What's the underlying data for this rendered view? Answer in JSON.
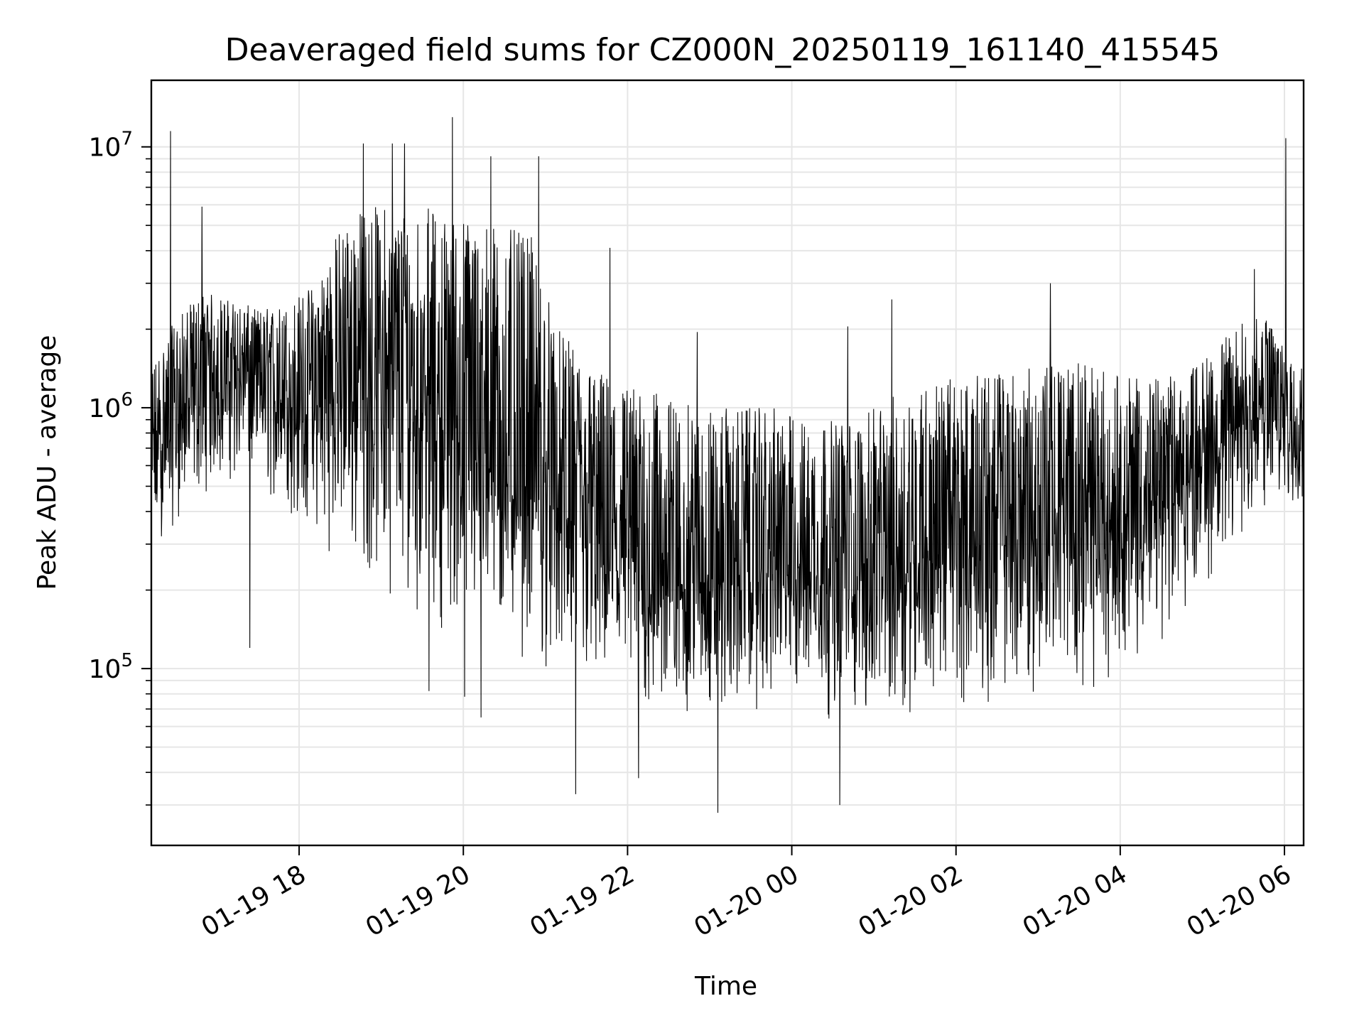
{
  "chart_data": {
    "type": "line",
    "title": "Deaveraged field sums for CZ000N_20250119_161140_415545",
    "xlabel": "Time",
    "ylabel": "Peak ADU - average",
    "x_scale": "time",
    "y_scale": "log",
    "xlim": [
      "2025-01-19 16:12",
      "2025-01-20 06:14"
    ],
    "ylim": [
      21000,
      18000000
    ],
    "x_ticks": [
      "2025-01-19 18:00",
      "2025-01-19 20:00",
      "2025-01-19 22:00",
      "2025-01-20 00:00",
      "2025-01-20 02:00",
      "2025-01-20 04:00",
      "2025-01-20 06:00"
    ],
    "x_tick_labels": [
      "01-19 18",
      "01-19 20",
      "01-19 22",
      "01-20 00",
      "01-20 02",
      "01-20 04",
      "01-20 06"
    ],
    "y_ticks": [
      100000,
      1000000,
      10000000
    ],
    "y_tick_labels": [
      {
        "base": "10",
        "exp": "5"
      },
      {
        "base": "10",
        "exp": "6"
      },
      {
        "base": "10",
        "exp": "7"
      }
    ],
    "grid": true,
    "legend": "none",
    "line_color": "#000000",
    "grid_color": "#e6e6e6",
    "series": [
      {
        "x": [
          "2025-01-19 16:12",
          "2025-01-19 16:30",
          "2025-01-19 16:50",
          "2025-01-19 17:10",
          "2025-01-19 17:30",
          "2025-01-19 17:50",
          "2025-01-19 18:10",
          "2025-01-19 18:30",
          "2025-01-19 18:50",
          "2025-01-19 19:10",
          "2025-01-19 19:30",
          "2025-01-19 19:50",
          "2025-01-19 20:10",
          "2025-01-19 20:30",
          "2025-01-19 20:50",
          "2025-01-19 21:10",
          "2025-01-19 21:30",
          "2025-01-19 21:50",
          "2025-01-19 22:10",
          "2025-01-19 22:30",
          "2025-01-19 22:50",
          "2025-01-19 23:10",
          "2025-01-19 23:30",
          "2025-01-19 23:50",
          "2025-01-20 00:10",
          "2025-01-20 00:30",
          "2025-01-20 00:50",
          "2025-01-20 01:10",
          "2025-01-20 01:30",
          "2025-01-20 01:50",
          "2025-01-20 02:10",
          "2025-01-20 02:30",
          "2025-01-20 02:50",
          "2025-01-20 03:10",
          "2025-01-20 03:30",
          "2025-01-20 03:50",
          "2025-01-20 04:10",
          "2025-01-20 04:30",
          "2025-01-20 04:50",
          "2025-01-20 05:10",
          "2025-01-20 05:30",
          "2025-01-20 05:50",
          "2025-01-20 06:10"
        ],
        "y": [
          600000,
          900000,
          1200000,
          1400000,
          1300000,
          1100000,
          1000000,
          1300000,
          1400000,
          1300000,
          1100000,
          900000,
          700000,
          600000,
          500000,
          400000,
          350000,
          300000,
          250000,
          220000,
          220000,
          230000,
          240000,
          250000,
          260000,
          240000,
          230000,
          250000,
          280000,
          300000,
          310000,
          320000,
          330000,
          340000,
          360000,
          380000,
          420000,
          480000,
          560000,
          700000,
          900000,
          1000000,
          900000
        ],
        "lower": [
          250000,
          350000,
          450000,
          500000,
          450000,
          350000,
          300000,
          250000,
          200000,
          180000,
          150000,
          130000,
          120000,
          110000,
          100000,
          80000,
          70000,
          65000,
          55000,
          60000,
          60000,
          62000,
          65000,
          65000,
          65000,
          60000,
          58000,
          60000,
          65000,
          70000,
          70000,
          70000,
          75000,
          75000,
          80000,
          85000,
          95000,
          120000,
          160000,
          220000,
          300000,
          350000,
          400000
        ],
        "upper": [
          1500000,
          2200000,
          2800000,
          2600000,
          2400000,
          2500000,
          3000000,
          5000000,
          6000000,
          6000000,
          6000000,
          5500000,
          5500000,
          5000000,
          4500000,
          2000000,
          1500000,
          1300000,
          1200000,
          1100000,
          1000000,
          1000000,
          1000000,
          1000000,
          900000,
          900000,
          900000,
          1100000,
          1200000,
          1300000,
          1300000,
          1400000,
          1400000,
          1500000,
          1500000,
          1400000,
          1300000,
          1300000,
          1400000,
          1700000,
          2200000,
          2200000,
          1500000
        ],
        "spikes": [
          {
            "x": "2025-01-19 16:26",
            "y": 11500000
          },
          {
            "x": "2025-01-19 16:49",
            "y": 5900000
          },
          {
            "x": "2025-01-19 17:24",
            "y": 120000
          },
          {
            "x": "2025-01-19 18:47",
            "y": 10300000
          },
          {
            "x": "2025-01-19 19:08",
            "y": 10300000
          },
          {
            "x": "2025-01-19 19:17",
            "y": 10300000
          },
          {
            "x": "2025-01-19 19:35",
            "y": 82000
          },
          {
            "x": "2025-01-19 19:52",
            "y": 13000000
          },
          {
            "x": "2025-01-19 20:01",
            "y": 78000
          },
          {
            "x": "2025-01-19 20:13",
            "y": 65000
          },
          {
            "x": "2025-01-19 20:20",
            "y": 9200000
          },
          {
            "x": "2025-01-19 20:55",
            "y": 9200000
          },
          {
            "x": "2025-01-19 21:22",
            "y": 33000
          },
          {
            "x": "2025-01-19 21:47",
            "y": 4100000
          },
          {
            "x": "2025-01-19 22:08",
            "y": 38000
          },
          {
            "x": "2025-01-19 22:51",
            "y": 1950000
          },
          {
            "x": "2025-01-19 23:06",
            "y": 28000
          },
          {
            "x": "2025-01-20 00:35",
            "y": 30000
          },
          {
            "x": "2025-01-20 00:41",
            "y": 2050000
          },
          {
            "x": "2025-01-20 01:13",
            "y": 2600000
          },
          {
            "x": "2025-01-20 03:09",
            "y": 3000000
          },
          {
            "x": "2025-01-20 05:38",
            "y": 3400000
          },
          {
            "x": "2025-01-20 06:01",
            "y": 10800000
          }
        ]
      }
    ]
  }
}
